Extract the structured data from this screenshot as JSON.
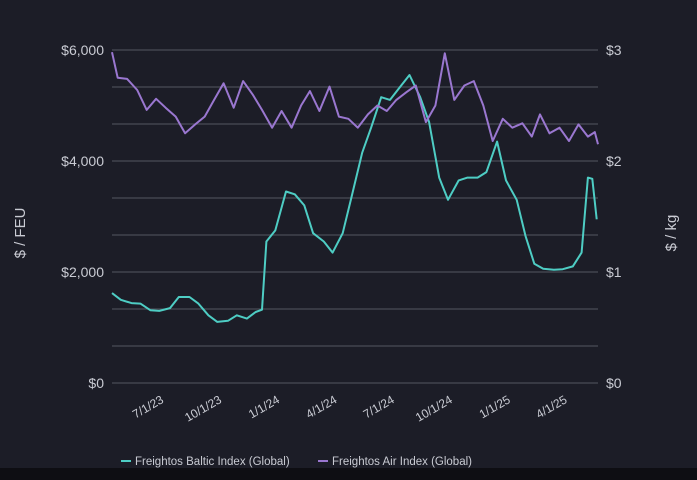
{
  "chart_data": {
    "type": "line",
    "xlabel": "",
    "y_left_label": "$ / FEU",
    "y_right_label": "$ / kg",
    "y_left_range": [
      0,
      6000
    ],
    "y_right_range": [
      0,
      3
    ],
    "y_left_ticks": [
      "$0",
      "$2,000",
      "$4,000",
      "$6,000"
    ],
    "y_right_ticks": [
      "$0",
      "$1",
      "$2",
      "$3"
    ],
    "x_tick_labels": [
      "7/1/23",
      "10/1/23",
      "1/1/24",
      "4/1/24",
      "7/1/24",
      "10/1/24",
      "1/1/25",
      "4/1/25"
    ],
    "grid": "horizontal",
    "legend_position": "bottom",
    "series": [
      {
        "name": "Freightos Baltic Index (Global)",
        "axis": "left",
        "color": "#4ecdc4",
        "points": [
          [
            "2023-05-01",
            1620
          ],
          [
            "2023-05-15",
            1500
          ],
          [
            "2023-06-01",
            1440
          ],
          [
            "2023-06-15",
            1430
          ],
          [
            "2023-07-01",
            1310
          ],
          [
            "2023-07-15",
            1300
          ],
          [
            "2023-08-01",
            1350
          ],
          [
            "2023-08-15",
            1550
          ],
          [
            "2023-09-01",
            1550
          ],
          [
            "2023-09-15",
            1430
          ],
          [
            "2023-10-01",
            1220
          ],
          [
            "2023-10-15",
            1100
          ],
          [
            "2023-11-01",
            1120
          ],
          [
            "2023-11-15",
            1220
          ],
          [
            "2023-12-01",
            1160
          ],
          [
            "2023-12-15",
            1280
          ],
          [
            "2023-12-25",
            1320
          ],
          [
            "2024-01-01",
            2550
          ],
          [
            "2024-01-15",
            2750
          ],
          [
            "2024-02-01",
            3450
          ],
          [
            "2024-02-15",
            3400
          ],
          [
            "2024-03-01",
            3200
          ],
          [
            "2024-03-15",
            2700
          ],
          [
            "2024-04-01",
            2550
          ],
          [
            "2024-04-15",
            2350
          ],
          [
            "2024-05-01",
            2700
          ],
          [
            "2024-05-15",
            3350
          ],
          [
            "2024-06-01",
            4150
          ],
          [
            "2024-06-15",
            4600
          ],
          [
            "2024-07-01",
            5150
          ],
          [
            "2024-07-15",
            5100
          ],
          [
            "2024-08-01",
            5350
          ],
          [
            "2024-08-15",
            5550
          ],
          [
            "2024-09-01",
            5150
          ],
          [
            "2024-09-15",
            4700
          ],
          [
            "2024-10-01",
            3700
          ],
          [
            "2024-10-15",
            3300
          ],
          [
            "2024-11-01",
            3650
          ],
          [
            "2024-11-15",
            3700
          ],
          [
            "2024-12-01",
            3700
          ],
          [
            "2024-12-15",
            3800
          ],
          [
            "2025-01-01",
            4350
          ],
          [
            "2025-01-15",
            3650
          ],
          [
            "2025-02-01",
            3300
          ],
          [
            "2025-02-15",
            2650
          ],
          [
            "2025-03-01",
            2150
          ],
          [
            "2025-03-15",
            2060
          ],
          [
            "2025-04-01",
            2040
          ],
          [
            "2025-04-15",
            2050
          ],
          [
            "2025-05-01",
            2100
          ],
          [
            "2025-05-15",
            2350
          ],
          [
            "2025-05-25",
            3700
          ],
          [
            "2025-06-01",
            3680
          ],
          [
            "2025-06-08",
            2950
          ]
        ]
      },
      {
        "name": "Freightos Air Index (Global)",
        "axis": "right",
        "color": "#9a77d0",
        "points": [
          [
            "2023-05-01",
            2.98
          ],
          [
            "2023-05-10",
            2.75
          ],
          [
            "2023-05-25",
            2.74
          ],
          [
            "2023-06-10",
            2.64
          ],
          [
            "2023-06-25",
            2.46
          ],
          [
            "2023-07-10",
            2.56
          ],
          [
            "2023-07-25",
            2.48
          ],
          [
            "2023-08-10",
            2.4
          ],
          [
            "2023-08-25",
            2.25
          ],
          [
            "2023-09-10",
            2.33
          ],
          [
            "2023-09-25",
            2.4
          ],
          [
            "2023-10-10",
            2.55
          ],
          [
            "2023-10-25",
            2.7
          ],
          [
            "2023-11-10",
            2.48
          ],
          [
            "2023-11-25",
            2.72
          ],
          [
            "2023-12-10",
            2.6
          ],
          [
            "2023-12-25",
            2.46
          ],
          [
            "2024-01-10",
            2.3
          ],
          [
            "2024-01-25",
            2.45
          ],
          [
            "2024-02-10",
            2.3
          ],
          [
            "2024-02-25",
            2.5
          ],
          [
            "2024-03-10",
            2.63
          ],
          [
            "2024-03-25",
            2.45
          ],
          [
            "2024-04-10",
            2.67
          ],
          [
            "2024-04-25",
            2.4
          ],
          [
            "2024-05-10",
            2.38
          ],
          [
            "2024-05-25",
            2.3
          ],
          [
            "2024-06-10",
            2.42
          ],
          [
            "2024-06-25",
            2.5
          ],
          [
            "2024-07-10",
            2.45
          ],
          [
            "2024-07-25",
            2.55
          ],
          [
            "2024-08-10",
            2.62
          ],
          [
            "2024-08-25",
            2.68
          ],
          [
            "2024-09-10",
            2.35
          ],
          [
            "2024-09-25",
            2.5
          ],
          [
            "2024-10-10",
            2.97
          ],
          [
            "2024-10-25",
            2.55
          ],
          [
            "2024-11-10",
            2.68
          ],
          [
            "2024-11-25",
            2.72
          ],
          [
            "2024-12-10",
            2.5
          ],
          [
            "2024-12-25",
            2.18
          ],
          [
            "2025-01-10",
            2.38
          ],
          [
            "2025-01-25",
            2.3
          ],
          [
            "2025-02-10",
            2.34
          ],
          [
            "2025-02-25",
            2.22
          ],
          [
            "2025-03-10",
            2.42
          ],
          [
            "2025-03-25",
            2.25
          ],
          [
            "2025-04-10",
            2.3
          ],
          [
            "2025-04-25",
            2.18
          ],
          [
            "2025-05-10",
            2.33
          ],
          [
            "2025-05-25",
            2.22
          ],
          [
            "2025-06-05",
            2.26
          ],
          [
            "2025-06-10",
            2.15
          ]
        ]
      }
    ]
  }
}
